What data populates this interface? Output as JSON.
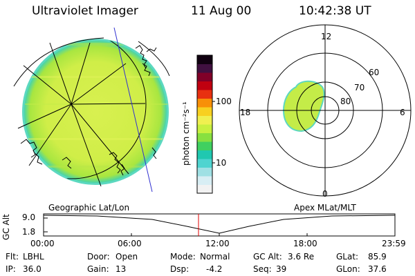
{
  "header": {
    "instrument": "Ultraviolet Imager",
    "date": "11 Aug 00",
    "time": "10:42:38 UT"
  },
  "colorbar": {
    "unit_label": "photon cm⁻²s⁻¹",
    "ticks": [
      "100",
      "10"
    ],
    "colors": [
      "#f2f2f2",
      "#d8eef4",
      "#9fe0e4",
      "#4fd4d0",
      "#20c8b0",
      "#40d060",
      "#88e040",
      "#c8f040",
      "#f0f050",
      "#f8d020",
      "#f89008",
      "#e83010",
      "#c00010",
      "#800028",
      "#401040",
      "#100010"
    ]
  },
  "polar_plot": {
    "mlt_labels": [
      "12",
      "18",
      "6",
      "0"
    ],
    "lat_labels": [
      "60",
      "70",
      "80"
    ]
  },
  "timeline": {
    "left_label": "Geographic Lat/Lon",
    "right_label": "Apex MLat/MLT",
    "axis_title": "GC Alt",
    "y_ticks": [
      "9.0",
      "1.8"
    ],
    "x_ticks": [
      "00:00",
      "06:00",
      "12:00",
      "18:00",
      "23:59"
    ]
  },
  "info": {
    "flt_label": "Flt:",
    "flt_value": "LBHL",
    "ip_label": "IP:",
    "ip_value": "36.0",
    "door_label": "Door:",
    "door_value": "Open",
    "gain_label": "Gain:",
    "gain_value": "13",
    "mode_label": "Mode:",
    "mode_value": "Normal",
    "dsp_label": "Dsp:",
    "dsp_value": "-4.2",
    "gcalt_label": "GC Alt:",
    "gcalt_value": "3.6 Re",
    "seq_label": "Seq:",
    "seq_value": "39",
    "glat_label": "GLat:",
    "glat_value": "85.9",
    "glon_label": "GLon:",
    "glon_value": "37.6"
  }
}
